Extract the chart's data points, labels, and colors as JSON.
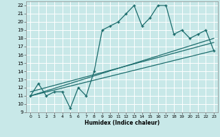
{
  "xlabel": "Humidex (Indice chaleur)",
  "bg_color": "#c8e8e8",
  "grid_color": "#ffffff",
  "line_color": "#1a6b6b",
  "xlim": [
    -0.5,
    23.5
  ],
  "ylim": [
    9,
    22.5
  ],
  "xticks": [
    0,
    1,
    2,
    3,
    4,
    5,
    6,
    7,
    8,
    9,
    10,
    11,
    12,
    13,
    14,
    15,
    16,
    17,
    18,
    19,
    20,
    21,
    22,
    23
  ],
  "yticks": [
    9,
    10,
    11,
    12,
    13,
    14,
    15,
    16,
    17,
    18,
    19,
    20,
    21,
    22
  ],
  "zigzag_x": [
    0,
    1,
    2,
    3,
    4,
    5,
    6,
    7,
    8,
    9,
    10,
    11,
    12,
    13,
    14,
    15,
    16,
    17,
    18,
    19,
    20,
    21,
    22,
    23
  ],
  "zigzag_y": [
    11,
    12.5,
    11,
    11.5,
    11.5,
    9.5,
    12,
    11,
    14,
    19,
    19.5,
    20,
    21,
    22,
    19.5,
    20.5,
    22,
    22,
    18.5,
    19,
    18,
    18.5,
    19,
    16.5
  ],
  "line1_x": [
    0,
    23
  ],
  "line1_y": [
    11,
    16.5
  ],
  "line2_x": [
    0,
    23
  ],
  "line2_y": [
    11,
    18.0
  ],
  "line3_x": [
    0,
    23
  ],
  "line3_y": [
    11.5,
    17.5
  ]
}
